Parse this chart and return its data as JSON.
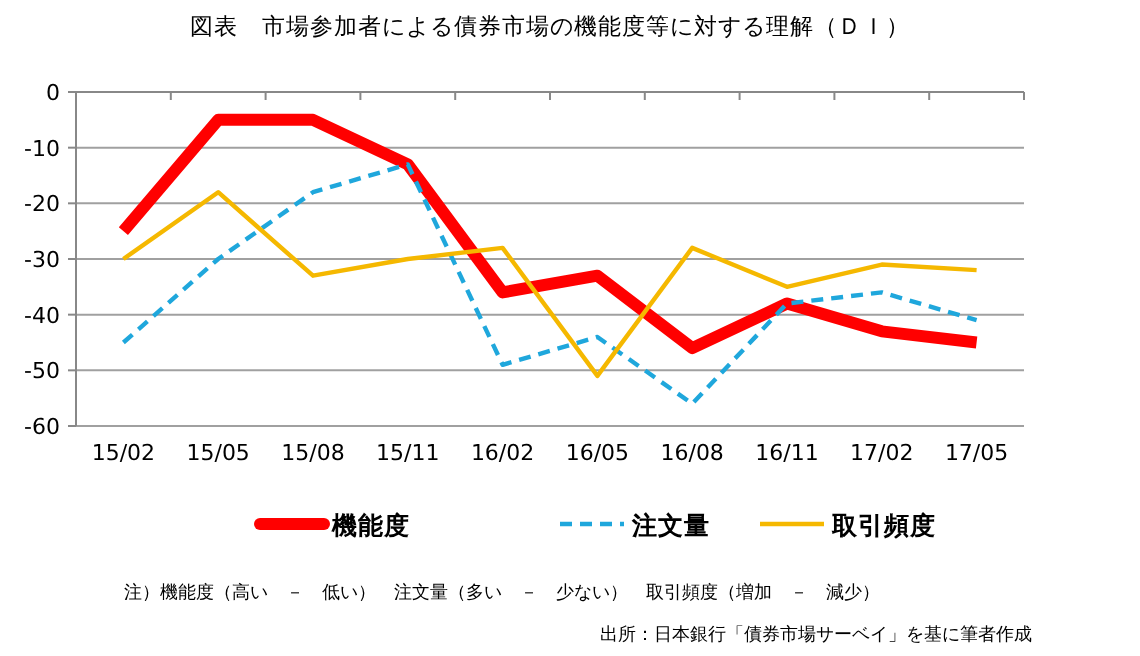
{
  "chart_data": {
    "type": "line",
    "title": "図表　市場参加者による債券市場の機能度等に対する理解（ＤＩ）",
    "categories": [
      "15/02",
      "15/05",
      "15/08",
      "15/11",
      "16/02",
      "16/05",
      "16/08",
      "16/11",
      "17/02",
      "17/05"
    ],
    "series": [
      {
        "name": "機能度",
        "color": "#ff0000",
        "values": [
          -25,
          -5,
          -5,
          -13,
          -36,
          -33,
          -46,
          -38,
          -43,
          -45
        ]
      },
      {
        "name": "注文量",
        "color": "#1fa7dc",
        "line_style": "dashed",
        "values": [
          -45,
          -30,
          -18,
          -13,
          -49,
          -44,
          -56,
          -38,
          -36,
          -41
        ]
      },
      {
        "name": "取引頻度",
        "color": "#f5b800",
        "values": [
          -30,
          -18,
          -33,
          -30,
          -28,
          -51,
          -28,
          -35,
          -31,
          -32
        ]
      }
    ],
    "ylim": [
      -60,
      0
    ],
    "yticks": [
      -60,
      -50,
      -40,
      -30,
      -20,
      -10,
      0
    ],
    "grid": "y",
    "legend": "bottom",
    "marker": "none",
    "annotations": [
      "注）機能度（高い　－　低い）　注文量（多い　－　少ない）　取引頻度（増加　－　減少）",
      "出所：日本銀行「債券市場サーベイ」を基に筆者作成"
    ]
  }
}
